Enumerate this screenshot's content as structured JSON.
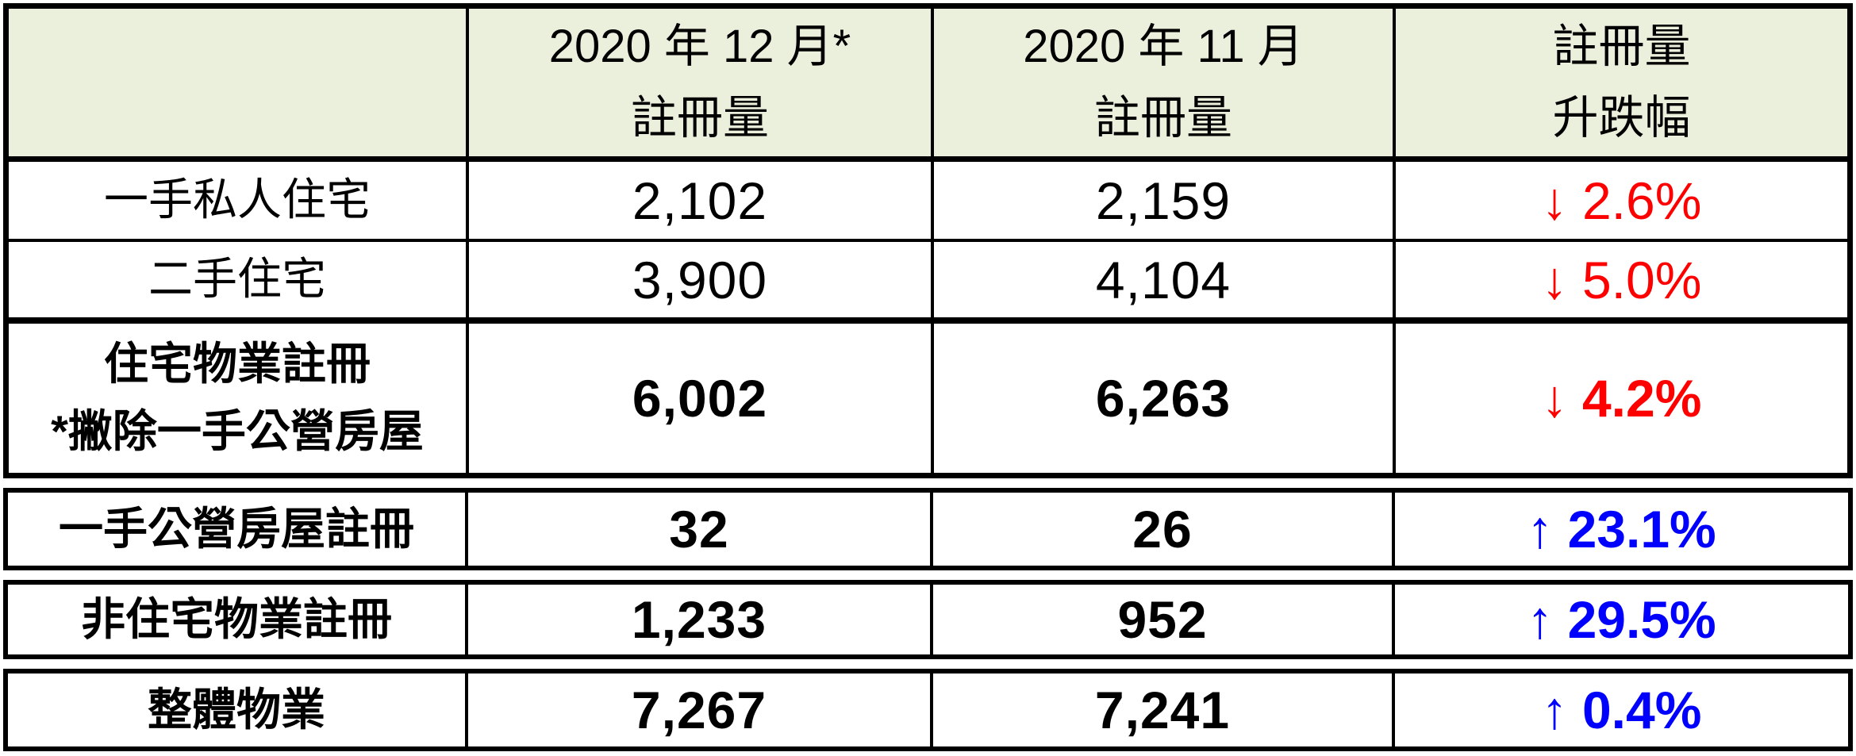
{
  "colors": {
    "page_bg": "#FFFFFF",
    "header_bg": "#EBF0DD",
    "border": "#000000",
    "text": "#000000",
    "decrease": "#FF0000",
    "increase": "#0000FF"
  },
  "header": {
    "corner": "",
    "col_dec": {
      "line1": "2020 年 12 月*",
      "line2": "註冊量"
    },
    "col_nov": {
      "line1": "2020 年 11 月",
      "line2": "註冊量"
    },
    "col_change": {
      "line1": "註冊量",
      "line2": "升跌幅"
    }
  },
  "rows": [
    {
      "label": "一手私人住宅",
      "dec": "2,102",
      "nov": "2,159",
      "change": "↓ 2.6%",
      "change_color": "#FF0000",
      "bold": false
    },
    {
      "label": "二手住宅",
      "dec": "3,900",
      "nov": "4,104",
      "change": "↓ 5.0%",
      "change_color": "#FF0000",
      "bold": false
    },
    {
      "label": "住宅物業註冊",
      "label_line2": "*撇除一手公營房屋",
      "dec": "6,002",
      "nov": "6,263",
      "change": "↓ 4.2%",
      "change_color": "#FF0000",
      "bold": true
    },
    {
      "label": "一手公營房屋註冊",
      "dec": "32",
      "nov": "26",
      "change": "↑ 23.1%",
      "change_color": "#0000FF",
      "bold": true
    },
    {
      "label": "非住宅物業註冊",
      "dec": "1,233",
      "nov": "952",
      "change": "↑ 29.5%",
      "change_color": "#0000FF",
      "bold": true
    },
    {
      "label": "整體物業",
      "dec": "7,267",
      "nov": "7,241",
      "change": "↑ 0.4%",
      "change_color": "#0000FF",
      "bold": true
    }
  ],
  "chart_data": {
    "type": "table",
    "title": "物業註冊量統計表",
    "columns": [
      "",
      "2020 年 12 月* 註冊量",
      "2020 年 11 月 註冊量",
      "註冊量 升跌幅"
    ],
    "rows": [
      [
        "一手私人住宅",
        2102,
        2159,
        "-2.6%"
      ],
      [
        "二手住宅",
        3900,
        4104,
        "-5.0%"
      ],
      [
        "住宅物業註冊 *撇除一手公營房屋",
        6002,
        6263,
        "-4.2%"
      ],
      [
        "一手公營房屋註冊",
        32,
        26,
        "+23.1%"
      ],
      [
        "非住宅物業註冊",
        1233,
        952,
        "+29.5%"
      ],
      [
        "整體物業",
        7267,
        7241,
        "+0.4%"
      ]
    ]
  }
}
